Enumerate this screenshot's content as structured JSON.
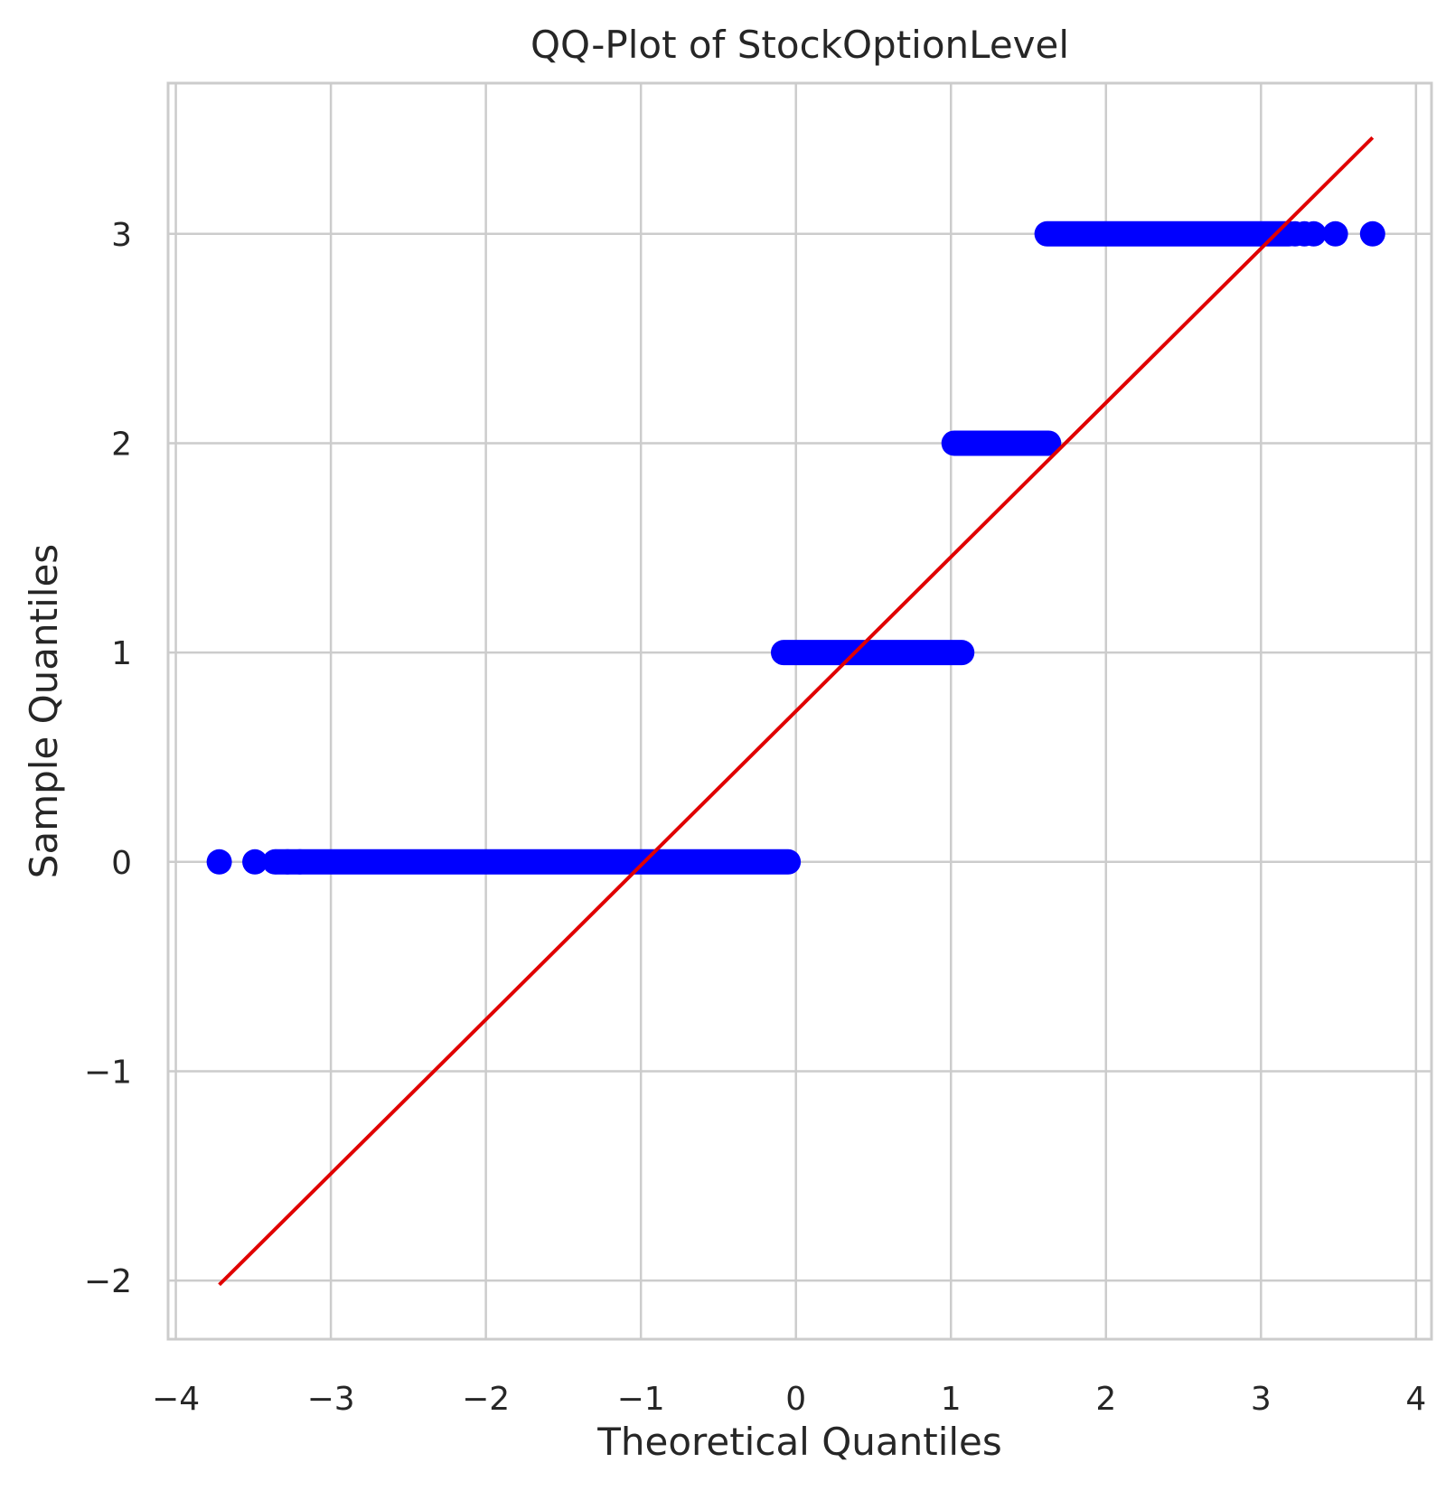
{
  "chart_data": {
    "type": "scatter",
    "title": "QQ-Plot of StockOptionLevel",
    "xlabel": "Theoretical Quantiles",
    "ylabel": "Sample Quantiles",
    "xlim": [
      -4.05,
      4.1
    ],
    "ylim": [
      -2.28,
      3.72
    ],
    "xticks": [
      -4,
      -3,
      -2,
      -1,
      0,
      1,
      2,
      3,
      4
    ],
    "yticks": [
      -2,
      -1,
      0,
      1,
      2,
      3
    ],
    "xtick_labels": [
      "−4",
      "−3",
      "−2",
      "−1",
      "0",
      "1",
      "2",
      "3",
      "4"
    ],
    "ytick_labels": [
      "−2",
      "−1",
      "0",
      "1",
      "2",
      "3"
    ],
    "grid": true,
    "colors": {
      "points": "#0000ff",
      "line": "#e00000",
      "grid": "#cccccc",
      "text": "#262626"
    },
    "series": [
      {
        "kind": "points",
        "groups": [
          {
            "y": 0,
            "x_start": -3.35,
            "x_end": -0.05,
            "isolated_x": [
              -3.72,
              -3.49,
              -3.36,
              -3.28,
              -3.2
            ]
          },
          {
            "y": 1,
            "x_start": -0.08,
            "x_end": 1.07,
            "isolated_x": []
          },
          {
            "y": 2,
            "x_start": 1.02,
            "x_end": 1.63,
            "isolated_x": []
          },
          {
            "y": 3,
            "x_start": 1.62,
            "x_end": 3.18,
            "isolated_x": [
              3.22,
              3.28,
              3.34,
              3.48,
              3.72
            ]
          }
        ]
      },
      {
        "kind": "reference-line",
        "x": [
          -3.72,
          3.72
        ],
        "y": [
          -2.02,
          3.46
        ]
      }
    ]
  }
}
